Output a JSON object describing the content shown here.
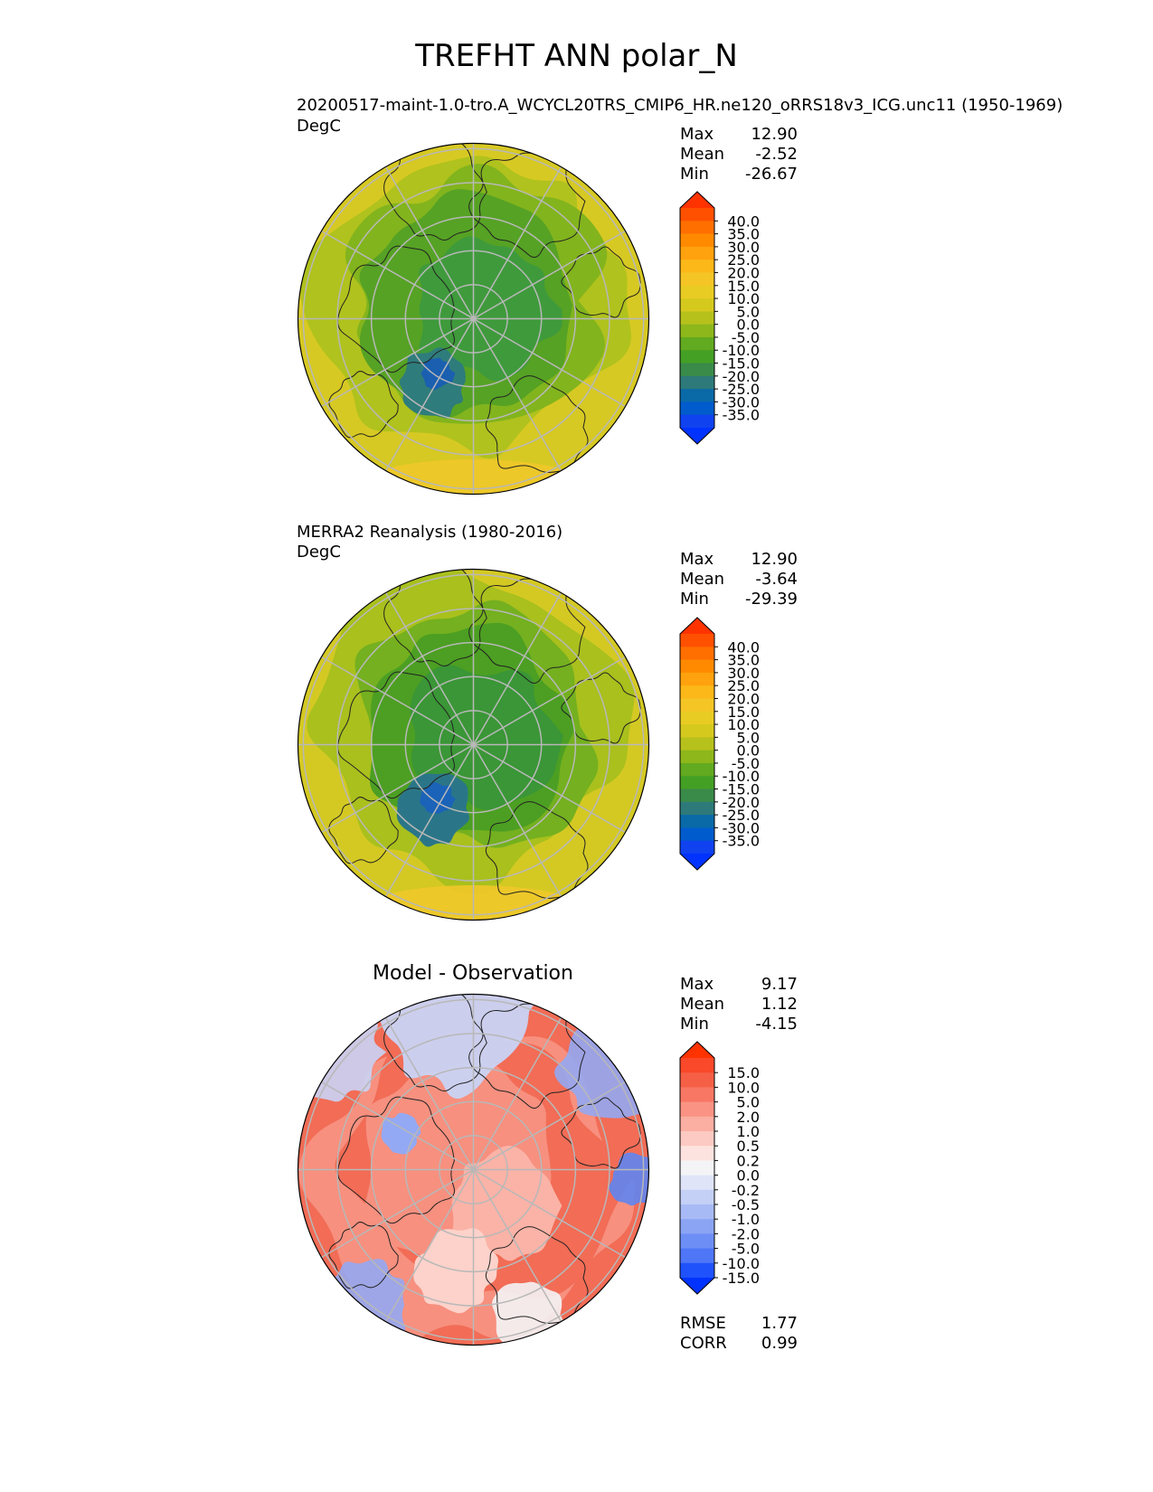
{
  "title": "TREFHT ANN polar_N",
  "panels": [
    {
      "title": "20200517-maint-1.0-tro.A_WCYCL20TRS_CMIP6_HR.ne120_oRRS18v3_ICG.unc11 (1950-1969)",
      "units": "DegC",
      "center_title": "",
      "stats": [
        {
          "label": "Max",
          "value": "12.90"
        },
        {
          "label": "Mean",
          "value": "-2.52"
        },
        {
          "label": "Min",
          "value": "-26.67"
        }
      ],
      "colorbar": {
        "ticks": [
          "40.0",
          "35.0",
          "30.0",
          "25.0",
          "20.0",
          "15.0",
          "10.0",
          "5.0",
          "0.0",
          "-5.0",
          "-10.0",
          "-15.0",
          "-20.0",
          "-25.0",
          "-30.0",
          "-35.0"
        ],
        "colors": [
          "#ff3300",
          "#ff5000",
          "#ff6f00",
          "#ff8a00",
          "#ffa20d",
          "#fcb718",
          "#f5c526",
          "#e9cc23",
          "#d6c91e",
          "#b7c11c",
          "#8db71b",
          "#62aa20",
          "#44a024",
          "#3a8a4a",
          "#2e7a7a",
          "#0a6aa8",
          "#005ccc",
          "#1042f0",
          "#0033ff"
        ]
      },
      "map": {
        "type": "temperature",
        "colors": [
          "#d7c923",
          "#b0c21d",
          "#82b41d",
          "#56a224",
          "#3f9a3c",
          "#2f7c7c",
          "#1a5fb0"
        ]
      }
    },
    {
      "title": "MERRA2 Reanalysis (1980-2016)",
      "units": "DegC",
      "center_title": "",
      "stats": [
        {
          "label": "Max",
          "value": "12.90"
        },
        {
          "label": "Mean",
          "value": "-3.64"
        },
        {
          "label": "Min",
          "value": "-29.39"
        }
      ],
      "colorbar": {
        "ticks": [
          "40.0",
          "35.0",
          "30.0",
          "25.0",
          "20.0",
          "15.0",
          "10.0",
          "5.0",
          "0.0",
          "-5.0",
          "-10.0",
          "-15.0",
          "-20.0",
          "-25.0",
          "-30.0",
          "-35.0"
        ],
        "colors": [
          "#ff3300",
          "#ff5000",
          "#ff6f00",
          "#ff8a00",
          "#ffa20d",
          "#fcb718",
          "#f5c526",
          "#e9cc23",
          "#d6c91e",
          "#b7c11c",
          "#8db71b",
          "#62aa20",
          "#44a024",
          "#3a8a4a",
          "#2e7a7a",
          "#0a6aa8",
          "#005ccc",
          "#1042f0",
          "#0033ff"
        ]
      },
      "map": {
        "type": "temperature",
        "colors": [
          "#d4c923",
          "#a9c01d",
          "#74b01f",
          "#4c9f22",
          "#3a9636",
          "#2a7688",
          "#1a63b8"
        ]
      }
    },
    {
      "title": "",
      "units": "",
      "center_title": "Model - Observation",
      "stats": [
        {
          "label": "Max",
          "value": "9.17"
        },
        {
          "label": "Mean",
          "value": "1.12"
        },
        {
          "label": "Min",
          "value": "-4.15"
        }
      ],
      "colorbar": {
        "ticks": [
          "15.0",
          "10.0",
          "5.0",
          "2.0",
          "1.0",
          "0.5",
          "0.2",
          "0.0",
          "-0.2",
          "-0.5",
          "-1.0",
          "-2.0",
          "-5.0",
          "-10.0",
          "-15.0"
        ],
        "colors": [
          "#ff3300",
          "#f9482a",
          "#f55f46",
          "#f77764",
          "#fa9383",
          "#fbaea2",
          "#fccac2",
          "#fde3df",
          "#f4f4f6",
          "#dfe4f8",
          "#c4d0f6",
          "#a8baf5",
          "#8ba4f4",
          "#6d8ef5",
          "#4f76f6",
          "#1f52fb",
          "#0033ff"
        ]
      },
      "map": {
        "type": "difference",
        "colors": [
          "#f26c56",
          "#f7907f",
          "#fbb3a7",
          "#fcd2ca",
          "#f4f4f6",
          "#c9d4f6",
          "#93a9f3",
          "#5f85f2"
        ]
      },
      "metrics": [
        {
          "label": "RMSE",
          "value": "1.77"
        },
        {
          "label": "CORR",
          "value": "0.99"
        }
      ]
    }
  ]
}
